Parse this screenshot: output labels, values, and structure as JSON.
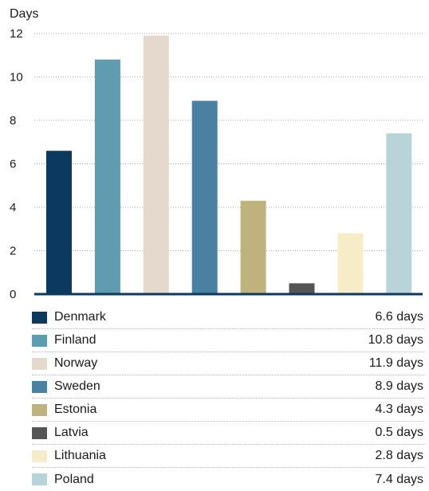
{
  "chart_data": {
    "type": "bar",
    "ylabel": "Days",
    "ylim": [
      0,
      12
    ],
    "yticks": [
      0,
      2,
      4,
      6,
      8,
      10,
      12
    ],
    "grid": true,
    "legend_position": "bottom",
    "categories": [
      "Denmark",
      "Finland",
      "Norway",
      "Sweden",
      "Estonia",
      "Latvia",
      "Lithuania",
      "Poland"
    ],
    "values": [
      6.6,
      10.8,
      11.9,
      8.9,
      4.3,
      0.5,
      2.8,
      7.4
    ],
    "colors": [
      "#0c3a5e",
      "#5f9cb0",
      "#e4d9cc",
      "#4a81a3",
      "#bfb27e",
      "#555555",
      "#f6edc8",
      "#b9d4d8"
    ],
    "value_labels": [
      "6.6 days",
      "10.8 days",
      "11.9 days",
      "8.9 days",
      "4.3 days",
      "0.5 days",
      "2.8 days",
      "7.4 days"
    ]
  }
}
